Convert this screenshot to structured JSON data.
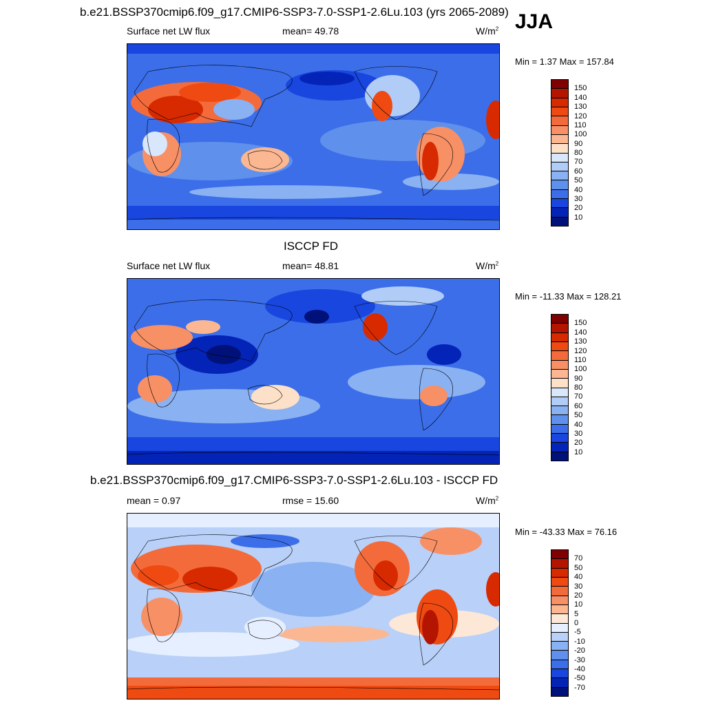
{
  "panel1": {
    "title": "b.e21.BSSP370cmip6.f09_g17.CMIP6-SSP3-7.0-SSP1-2.6Lu.103 (yrs 2065-2089)",
    "season": "JJA",
    "variable": "Surface net LW flux",
    "stat": "mean=  49.78",
    "units": "W/m",
    "units_sup": "2",
    "minmax": "Min =   1.37 Max = 157.84",
    "colorbar_labels": [
      "150",
      "140",
      "130",
      "120",
      "110",
      "100",
      "90",
      "80",
      "70",
      "60",
      "50",
      "40",
      "30",
      "20",
      "10"
    ],
    "colorbar_colors": [
      "#7f0000",
      "#b31500",
      "#d72a00",
      "#ef4a12",
      "#f46b3b",
      "#f89066",
      "#fbb792",
      "#fde0c8",
      "#d8e7fb",
      "#b1cdf7",
      "#8ab1f1",
      "#5f90ec",
      "#3b6ee8",
      "#1846df",
      "#0424b8",
      "#00117a"
    ]
  },
  "panel2": {
    "title": "ISCCP FD",
    "variable": "Surface net LW flux",
    "stat": "mean=  48.81",
    "units": "W/m",
    "units_sup": "2",
    "minmax": "Min = -11.33 Max = 128.21",
    "colorbar_labels": [
      "150",
      "140",
      "130",
      "120",
      "110",
      "100",
      "90",
      "80",
      "70",
      "60",
      "50",
      "40",
      "30",
      "20",
      "10"
    ],
    "colorbar_colors": [
      "#7f0000",
      "#b31500",
      "#d72a00",
      "#ef4a12",
      "#f46b3b",
      "#f89066",
      "#fbb792",
      "#fde0c8",
      "#d8e7fb",
      "#b1cdf7",
      "#8ab1f1",
      "#5f90ec",
      "#3b6ee8",
      "#1846df",
      "#0424b8",
      "#00117a"
    ]
  },
  "panel3": {
    "title": "b.e21.BSSP370cmip6.f09_g17.CMIP6-SSP3-7.0-SSP1-2.6Lu.103 - ISCCP FD",
    "stat_left": "mean =   0.97",
    "stat_mid": "rmse =  15.60",
    "units": "W/m",
    "units_sup": "2",
    "minmax": "Min = -43.33 Max =  76.16",
    "colorbar_labels": [
      "70",
      "50",
      "40",
      "30",
      "20",
      "10",
      "5",
      "0",
      "-5",
      "-10",
      "-20",
      "-30",
      "-40",
      "-50",
      "-70"
    ],
    "colorbar_colors": [
      "#7f0000",
      "#b31500",
      "#d72a00",
      "#ef4a12",
      "#f46b3b",
      "#f89066",
      "#fbb792",
      "#fde8d8",
      "#e6efff",
      "#b9d0f8",
      "#8ab1f1",
      "#5f90ec",
      "#3b6ee8",
      "#1846df",
      "#0424b8",
      "#00117a"
    ]
  }
}
